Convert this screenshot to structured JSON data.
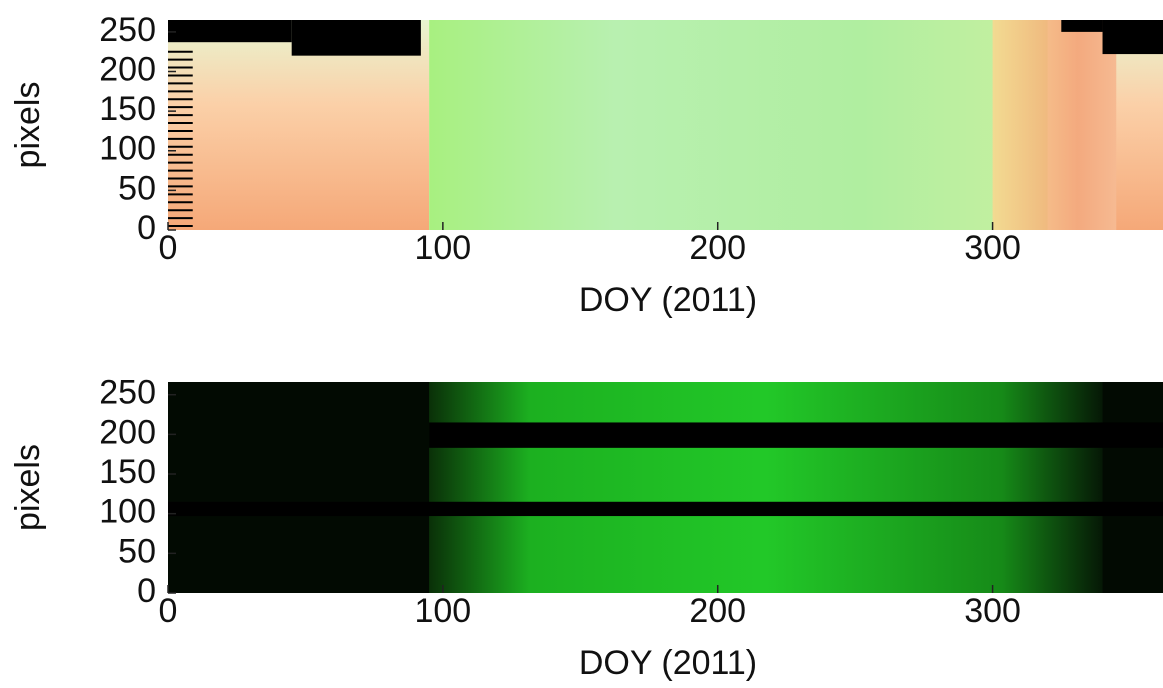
{
  "chart_data": [
    {
      "type": "image",
      "xlabel": "DOY (2011)",
      "ylabel": "pixels",
      "xlim": [
        0,
        362
      ],
      "xticks": [
        0,
        100,
        200,
        300
      ],
      "ylim": [
        0,
        265
      ],
      "yticks": [
        0,
        50,
        100,
        150,
        200,
        250
      ]
    },
    {
      "type": "image",
      "xlabel": "DOY (2011)",
      "ylabel": "pixels",
      "xlim": [
        0,
        362
      ],
      "xticks": [
        0,
        100,
        200,
        300
      ],
      "ylim": [
        0,
        266
      ],
      "yticks": [
        0,
        50,
        100,
        150,
        200,
        250
      ]
    }
  ]
}
